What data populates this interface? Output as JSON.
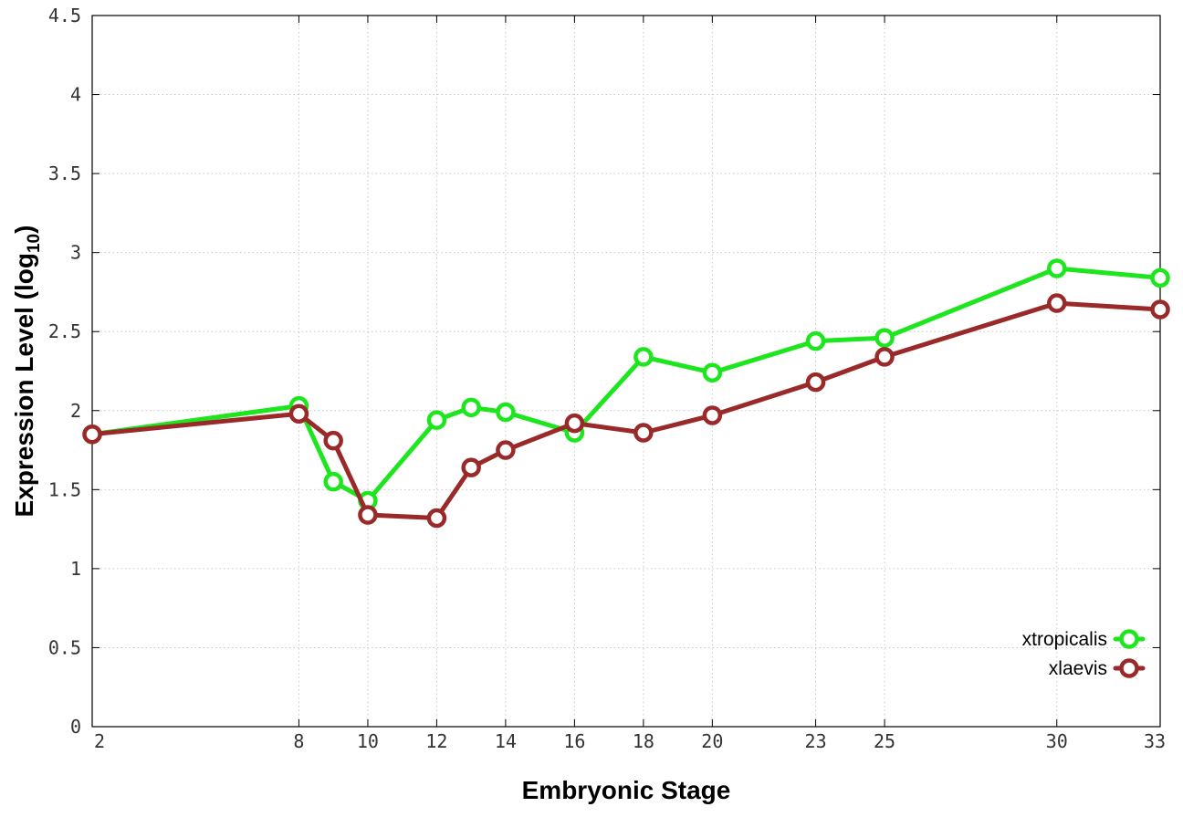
{
  "chart_data": {
    "type": "line",
    "xlabel": "Embryonic Stage",
    "ylabel": "Expression Level (log",
    "ylabel_sub": "10",
    "ylabel_close": ")",
    "xlim": [
      2,
      33
    ],
    "ylim": [
      0,
      4.5
    ],
    "xticks": [
      2,
      8,
      10,
      12,
      14,
      16,
      18,
      20,
      23,
      25,
      30,
      33
    ],
    "yticks": [
      0,
      0.5,
      1,
      1.5,
      2,
      2.5,
      3,
      3.5,
      4,
      4.5
    ],
    "ytick_labels": [
      "0",
      "0.5",
      "1",
      "1.5",
      "2",
      "2.5",
      "3",
      "3.5",
      "4",
      "4.5"
    ],
    "x": [
      2,
      8,
      9,
      10,
      12,
      13,
      14,
      16,
      18,
      20,
      23,
      25,
      30,
      33
    ],
    "grid": true,
    "legend_position": "bottom-right",
    "series": [
      {
        "name": "xtropicalis",
        "color": "#1ee61e",
        "values": [
          1.85,
          2.03,
          1.55,
          1.43,
          1.94,
          2.02,
          1.99,
          1.86,
          2.34,
          2.24,
          2.44,
          2.46,
          2.9,
          2.84
        ]
      },
      {
        "name": "xlaevis",
        "color": "#9a2a2a",
        "values": [
          1.85,
          1.98,
          1.81,
          1.34,
          1.32,
          1.64,
          1.75,
          1.92,
          1.86,
          1.97,
          2.18,
          2.34,
          2.68,
          2.64
        ]
      }
    ]
  }
}
